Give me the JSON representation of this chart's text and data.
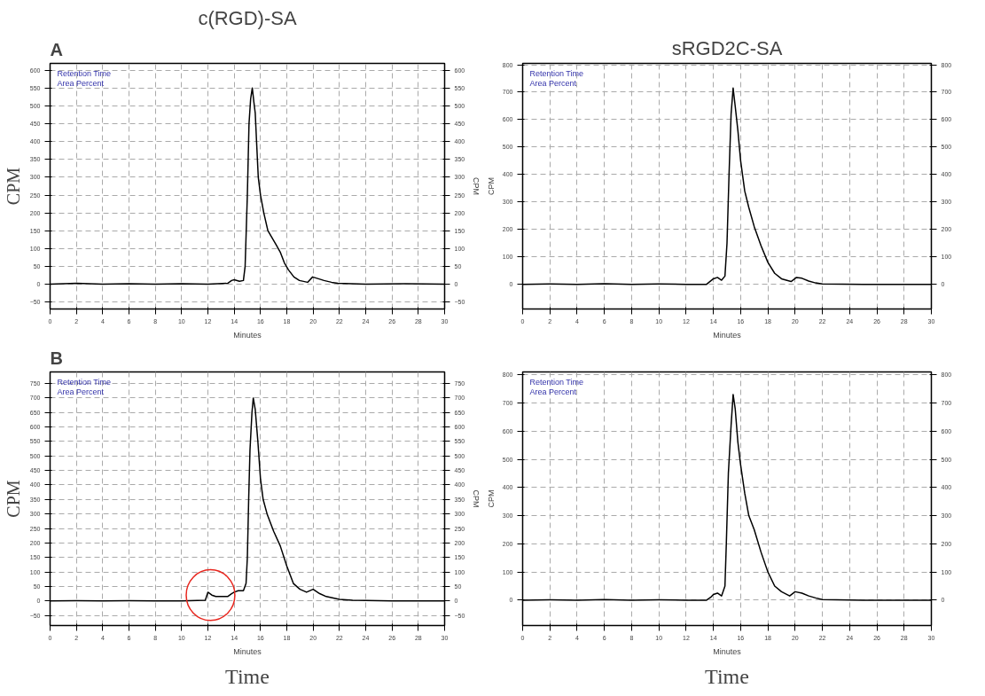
{
  "chart_data": [
    {
      "type": "line",
      "title": "c(RGD)-SA",
      "subtitle": "A",
      "xlabel": "Minutes",
      "ylabel": "CPM",
      "y2label": "CPM",
      "annotations": [
        "Retention Time",
        "Area Percent"
      ],
      "x": [
        0,
        2,
        4,
        6,
        8,
        10,
        12,
        13.5,
        13.8,
        14.0,
        14.4,
        14.7,
        14.83,
        15.0,
        15.125,
        15.25,
        15.375,
        15.5,
        15.6,
        15.7,
        15.83,
        16.0,
        16.25,
        16.56,
        16.875,
        17.19,
        17.5,
        17.81,
        18.125,
        18.54,
        18.96,
        19.58,
        19.96,
        20.4,
        20.83,
        21.4,
        21.875,
        24,
        27,
        30
      ],
      "series": [
        {
          "color": "#000000",
          "values": [
            0,
            2,
            0,
            1,
            0,
            1,
            0,
            2,
            10,
            12,
            8,
            10,
            50,
            250,
            450,
            520,
            551,
            510,
            480,
            400,
            300,
            250,
            200,
            150,
            130,
            110,
            90,
            60,
            40,
            20,
            10,
            5,
            20,
            15,
            10,
            5,
            2,
            0,
            1,
            0
          ]
        }
      ],
      "xlim": [
        0,
        30
      ],
      "xticks": [
        0,
        2,
        4,
        6,
        8,
        10,
        12,
        14,
        16,
        18,
        20,
        22,
        24,
        26,
        28,
        30
      ],
      "ylim": [
        -70,
        620
      ],
      "yticks": [
        -50,
        0,
        50,
        100,
        150,
        200,
        250,
        300,
        350,
        400,
        450,
        500,
        550,
        600
      ],
      "y2lim": [
        -70,
        620
      ],
      "y2ticks": [
        -50,
        0,
        50,
        100,
        150,
        200,
        250,
        300,
        350,
        400,
        450,
        500,
        550,
        600
      ],
      "grid": true,
      "line_style": "solid"
    },
    {
      "type": "line",
      "title": "sRGD2C-SA",
      "xlabel": "Minutes",
      "ylabel": "CPM",
      "annotations": [
        "Retention Time",
        "Area Percent"
      ],
      "x": [
        0,
        2,
        4,
        6,
        8,
        10,
        12,
        13.5,
        14,
        14.3,
        14.6,
        14.85,
        15.0,
        15.15,
        15.3,
        15.45,
        15.6,
        15.8,
        16,
        16.3,
        16.6,
        17,
        17.5,
        18,
        18.5,
        19,
        19.7,
        20.1,
        20.5,
        21,
        21.5,
        22,
        25,
        30
      ],
      "series": [
        {
          "color": "#000000",
          "values": [
            0,
            1,
            0,
            2,
            0,
            1,
            0,
            0,
            20,
            25,
            15,
            30,
            150,
            400,
            620,
            715,
            650,
            560,
            450,
            340,
            280,
            210,
            140,
            80,
            40,
            20,
            10,
            25,
            22,
            12,
            5,
            1,
            0,
            0
          ]
        }
      ],
      "xlim": [
        0,
        30
      ],
      "xticks": [
        0,
        2,
        4,
        6,
        8,
        10,
        12,
        14,
        16,
        18,
        20,
        22,
        24,
        26,
        28,
        30
      ],
      "ylim": [
        -90,
        805
      ],
      "yticks": [
        0,
        100,
        200,
        300,
        400,
        500,
        600,
        700,
        800
      ],
      "y2lim": [
        -90,
        805
      ],
      "y2ticks": [
        0,
        100,
        200,
        300,
        400,
        500,
        600,
        700,
        800
      ],
      "grid": true,
      "line_style": "solid"
    },
    {
      "type": "line",
      "subtitle": "B",
      "xlabel": "Minutes",
      "ylabel": "CPM",
      "y2label": "CPM",
      "annotations": [
        "Retention Time",
        "Area Percent",
        "Time"
      ],
      "x": [
        0,
        2,
        4,
        6,
        8,
        10,
        11.8,
        12.0,
        12.3,
        12.6,
        13.0,
        13.5,
        13.8,
        14.0,
        14.3,
        14.7,
        14.9,
        15.0,
        15.1,
        15.2,
        15.35,
        15.45,
        15.6,
        15.8,
        16.0,
        16.2,
        16.5,
        17,
        17.5,
        18,
        18.5,
        19,
        19.5,
        20,
        20.5,
        21,
        22,
        23,
        26,
        30
      ],
      "series": [
        {
          "color": "#000000",
          "values": [
            0,
            1,
            0,
            1,
            0,
            0,
            2,
            30,
            20,
            15,
            15,
            15,
            25,
            30,
            35,
            35,
            60,
            150,
            350,
            520,
            650,
            700,
            660,
            550,
            420,
            350,
            300,
            240,
            190,
            120,
            60,
            40,
            30,
            40,
            25,
            15,
            5,
            2,
            0,
            0
          ]
        }
      ],
      "xlim": [
        0,
        30
      ],
      "xticks": [
        0,
        2,
        4,
        6,
        8,
        10,
        12,
        14,
        16,
        18,
        20,
        22,
        24,
        26,
        28,
        30
      ],
      "ylim": [
        -85,
        790
      ],
      "yticks": [
        -50,
        0,
        50,
        100,
        150,
        200,
        250,
        300,
        350,
        400,
        450,
        500,
        550,
        600,
        650,
        700,
        750
      ],
      "y2lim": [
        -85,
        790
      ],
      "y2ticks": [
        -50,
        0,
        50,
        100,
        150,
        200,
        250,
        300,
        350,
        400,
        450,
        500,
        550,
        600,
        650,
        700,
        750
      ],
      "grid": true,
      "line_style": "solid"
    },
    {
      "type": "line",
      "xlabel": "Minutes",
      "ylabel": "CPM",
      "annotations": [
        "Retention Time",
        "Area Percent",
        "Time"
      ],
      "x": [
        0,
        2,
        4,
        6,
        8,
        10,
        12,
        13.5,
        13.8,
        14.0,
        14.3,
        14.6,
        14.85,
        14.95,
        15.1,
        15.3,
        15.45,
        15.6,
        15.8,
        16.0,
        16.3,
        16.6,
        17,
        17.5,
        18,
        18.5,
        19,
        19.6,
        20.0,
        20.5,
        21,
        21.5,
        22,
        25,
        30
      ],
      "series": [
        {
          "color": "#000000",
          "values": [
            0,
            1,
            0,
            2,
            0,
            1,
            0,
            0,
            10,
            20,
            25,
            15,
            50,
            200,
            450,
            620,
            730,
            680,
            560,
            480,
            380,
            300,
            250,
            170,
            100,
            50,
            30,
            15,
            30,
            25,
            15,
            8,
            2,
            0,
            0
          ]
        }
      ],
      "xlim": [
        0,
        30
      ],
      "xticks": [
        0,
        2,
        4,
        6,
        8,
        10,
        12,
        14,
        16,
        18,
        20,
        22,
        24,
        26,
        28,
        30
      ],
      "ylim": [
        -90,
        810
      ],
      "yticks": [
        0,
        100,
        200,
        300,
        400,
        500,
        600,
        700,
        800
      ],
      "y2lim": [
        -90,
        810
      ],
      "y2ticks": [
        0,
        100,
        200,
        300,
        400,
        500,
        600,
        700,
        800
      ],
      "grid": true,
      "line_style": "solid"
    }
  ]
}
